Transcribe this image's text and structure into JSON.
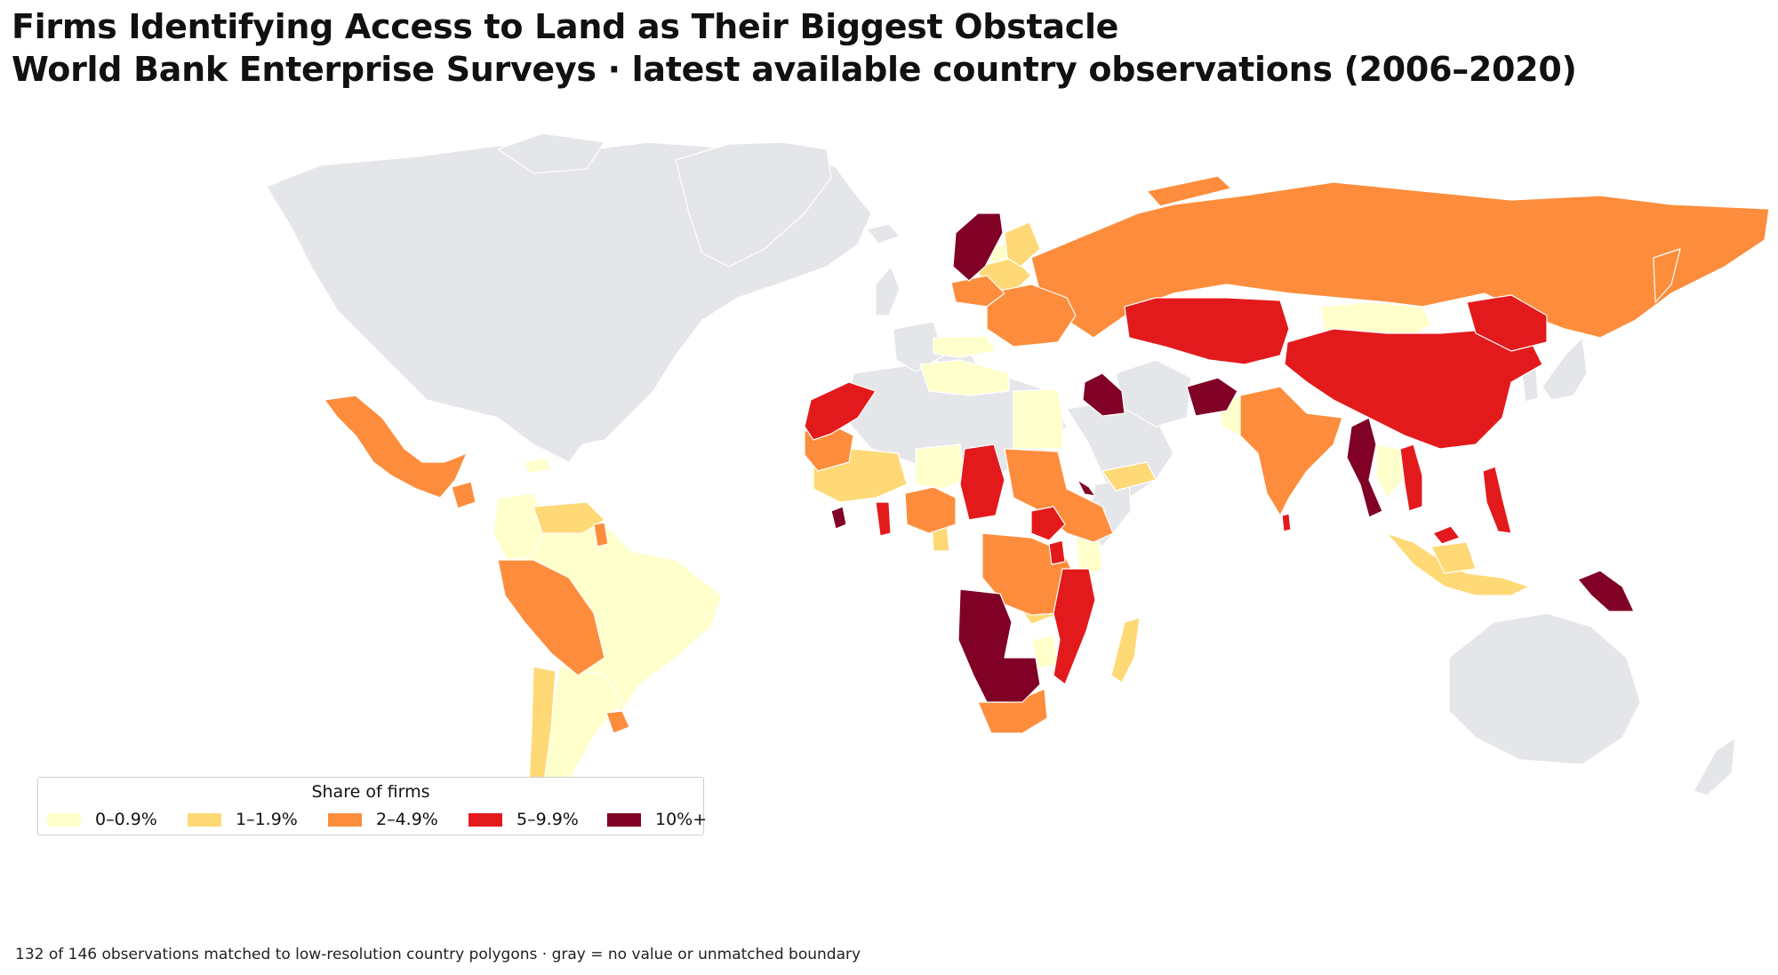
{
  "header": {
    "title": "Firms Identifying Access to Land as Their Biggest Obstacle",
    "subtitle": "World Bank Enterprise Surveys · latest available country observations (2006–2020)"
  },
  "legend": {
    "title": "Share of firms",
    "items": [
      {
        "label": "0–0.9%",
        "color": "#ffffcc"
      },
      {
        "label": "1–1.9%",
        "color": "#fed976"
      },
      {
        "label": "2–4.9%",
        "color": "#fd8d3c"
      },
      {
        "label": "5–9.9%",
        "color": "#e31a1c"
      },
      {
        "label": "10%+",
        "color": "#800026"
      }
    ]
  },
  "no_data_color": "#e5e6e9",
  "footnote": "132 of 146 observations matched to low-resolution country polygons · gray = no value or unmatched boundary"
}
